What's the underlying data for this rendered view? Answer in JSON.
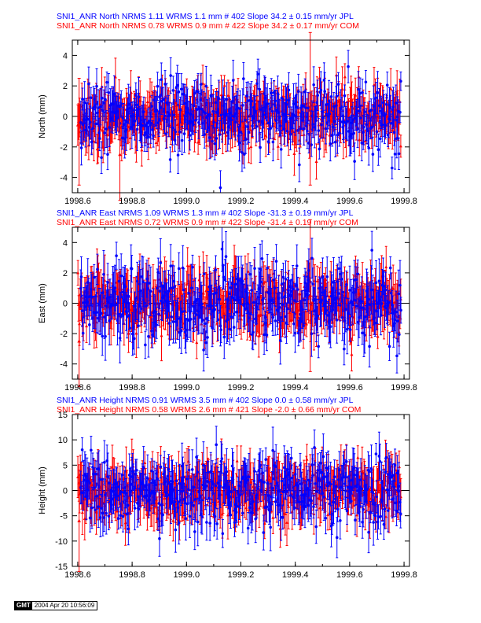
{
  "colors": {
    "jpl": "#0000ff",
    "com": "#ff0000",
    "axis": "#000000",
    "zero_line": "#000000"
  },
  "gmt_stamp": {
    "logo": "GMT",
    "timestamp": "2004 Apr 20 10:56:09"
  },
  "chart_data": [
    {
      "type": "scatter",
      "component": "North",
      "title_lines": [
        "SNI1_ANR North NRMS 1.11 WRMS  1.1 mm # 402 Slope   34.2 ±  0.15 mm/yr JPL",
        "SNI1_ANR North NRMS 0.78 WRMS  0.9 mm # 422 Slope   34.2 ±  0.17 mm/yr COM"
      ],
      "ylabel": "North (mm)",
      "xlim": [
        1998.58,
        1999.82
      ],
      "ylim": [
        -5,
        5
      ],
      "x_ticks": [
        1998.6,
        1998.8,
        1999.0,
        1999.2,
        1999.4,
        1999.6,
        1999.8
      ],
      "x_tick_labels": [
        "1998.6",
        "1998.8",
        "1999.0",
        "1999.2",
        "1999.4",
        "1999.6",
        "1999.8"
      ],
      "y_ticks": [
        -4,
        -2,
        0,
        2,
        4
      ],
      "y_tick_labels": [
        "-4",
        "-2",
        "0",
        "2",
        "4"
      ],
      "series": [
        {
          "name": "JPL",
          "color": "#0000ff",
          "n_points": 402,
          "nrms": 1.11,
          "wrms_mm": 1.1,
          "sigma_mm": 1.0,
          "x_range": [
            1998.61,
            1999.79
          ],
          "slope_mm_yr": 34.2,
          "slope_sigma_mm_yr": 0.15
        },
        {
          "name": "COM",
          "color": "#ff0000",
          "n_points": 422,
          "nrms": 0.78,
          "wrms_mm": 0.9,
          "sigma_mm": 1.1,
          "x_range": [
            1998.6,
            1999.79
          ],
          "slope_mm_yr": 34.2,
          "slope_sigma_mm_yr": 0.17
        }
      ],
      "outlier_bars": [
        {
          "series": "COM",
          "x": 1998.605,
          "y": -1.0,
          "err": 3.5
        },
        {
          "series": "COM",
          "x": 1998.755,
          "y": -2.5,
          "err": 3.0
        },
        {
          "series": "COM",
          "x": 1999.455,
          "y": 0.5,
          "err": 5.0
        }
      ]
    },
    {
      "type": "scatter",
      "component": "East",
      "title_lines": [
        "SNI1_ANR East NRMS 1.09 WRMS  1.3 mm # 402 Slope  -31.3 ±  0.19 mm/yr JPL",
        "SNI1_ANR East NRMS 0.72 WRMS  0.9 mm # 422 Slope  -31.4 ±  0.19 mm/yr COM"
      ],
      "ylabel": "East (mm)",
      "xlim": [
        1998.58,
        1999.82
      ],
      "ylim": [
        -5,
        5
      ],
      "x_ticks": [
        1998.6,
        1998.8,
        1999.0,
        1999.2,
        1999.4,
        1999.6,
        1999.8
      ],
      "x_tick_labels": [
        "1998.6",
        "1998.8",
        "1999.0",
        "1999.2",
        "1999.4",
        "1999.6",
        "1999.8"
      ],
      "y_ticks": [
        -4,
        -2,
        0,
        2,
        4
      ],
      "y_tick_labels": [
        "-4",
        "-2",
        "0",
        "2",
        "4"
      ],
      "series": [
        {
          "name": "JPL",
          "color": "#0000ff",
          "n_points": 402,
          "nrms": 1.09,
          "wrms_mm": 1.3,
          "sigma_mm": 1.2,
          "x_range": [
            1998.61,
            1999.79
          ],
          "slope_mm_yr": -31.3,
          "slope_sigma_mm_yr": 0.19
        },
        {
          "name": "COM",
          "color": "#ff0000",
          "n_points": 422,
          "nrms": 0.72,
          "wrms_mm": 0.9,
          "sigma_mm": 1.2,
          "x_range": [
            1998.6,
            1999.79
          ],
          "slope_mm_yr": -31.4,
          "slope_sigma_mm_yr": 0.19
        }
      ],
      "outlier_bars": [
        {
          "series": "COM",
          "x": 1998.605,
          "y": -2.5,
          "err": 3.0
        },
        {
          "series": "COM",
          "x": 1999.455,
          "y": 0.5,
          "err": 5.0
        }
      ]
    },
    {
      "type": "scatter",
      "component": "Height",
      "title_lines": [
        "SNI1_ANR Height NRMS 0.91 WRMS  3.5 mm # 402 Slope    0.0 ±  0.58 mm/yr JPL",
        "SNI1_ANR Height NRMS 0.58 WRMS  2.6 mm # 421 Slope   -2.0 ±  0.66 mm/yr COM"
      ],
      "ylabel": "Height (mm)",
      "xlim": [
        1998.58,
        1999.82
      ],
      "ylim": [
        -15,
        15
      ],
      "x_ticks": [
        1998.6,
        1998.8,
        1999.0,
        1999.2,
        1999.4,
        1999.6,
        1999.8
      ],
      "x_tick_labels": [
        "1998.6",
        "1998.8",
        "1999.0",
        "1999.2",
        "1999.4",
        "1999.6",
        "1999.8"
      ],
      "y_ticks": [
        -15,
        -10,
        -5,
        0,
        5,
        10,
        15
      ],
      "y_tick_labels": [
        "-15",
        "-10",
        "-5",
        "0",
        "5",
        "10",
        "15"
      ],
      "series": [
        {
          "name": "JPL",
          "color": "#0000ff",
          "n_points": 402,
          "nrms": 0.91,
          "wrms_mm": 3.5,
          "sigma_mm": 3.4,
          "x_range": [
            1998.61,
            1999.79
          ],
          "slope_mm_yr": 0.0,
          "slope_sigma_mm_yr": 0.58
        },
        {
          "name": "COM",
          "color": "#ff0000",
          "n_points": 421,
          "nrms": 0.58,
          "wrms_mm": 2.6,
          "sigma_mm": 3.5,
          "x_range": [
            1998.6,
            1999.79
          ],
          "slope_mm_yr": -2.0,
          "slope_sigma_mm_yr": 0.66
        }
      ],
      "outlier_bars": [
        {
          "series": "COM",
          "x": 1998.605,
          "y": -6.0,
          "err": 10.0
        }
      ]
    }
  ]
}
